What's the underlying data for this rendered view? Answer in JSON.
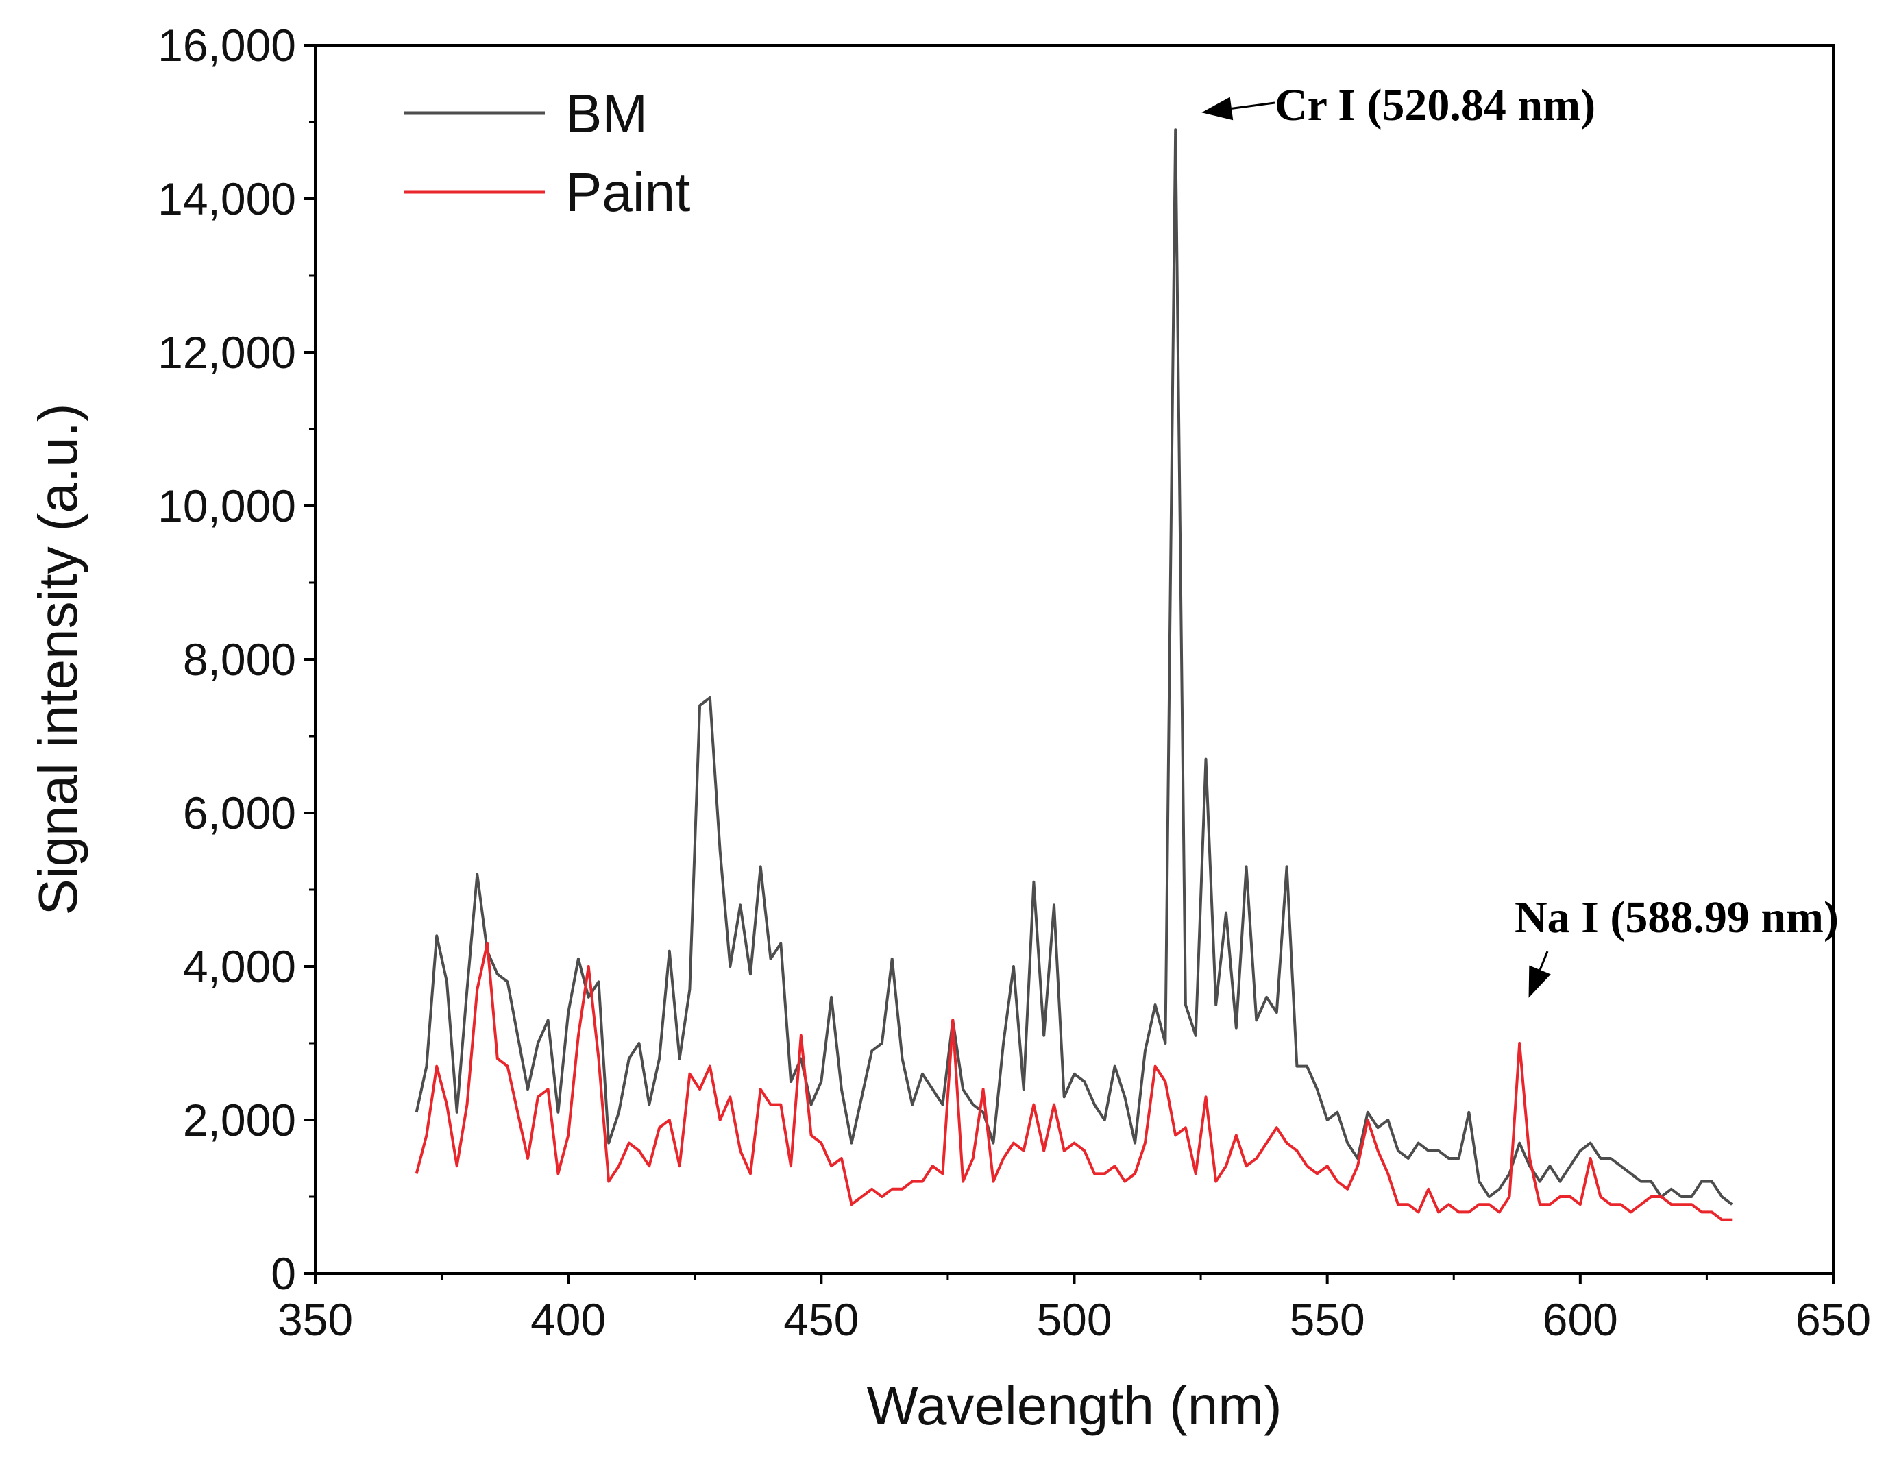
{
  "chart_data": {
    "type": "line",
    "title": "",
    "xlabel": "Wavelength (nm)",
    "ylabel": "Signal intensity (a.u.)",
    "xlim": [
      350,
      650
    ],
    "ylim": [
      0,
      16000
    ],
    "xticks": [
      350,
      400,
      450,
      500,
      550,
      600,
      650
    ],
    "xtick_labels": [
      "350",
      "400",
      "450",
      "500",
      "550",
      "600",
      "650"
    ],
    "yticks": [
      0,
      2000,
      4000,
      6000,
      8000,
      10000,
      12000,
      14000,
      16000
    ],
    "ytick_labels": [
      "0",
      "2,000",
      "4,000",
      "6,000",
      "8,000",
      "10,000",
      "12,000",
      "14,000",
      "16,000"
    ],
    "grid": false,
    "legend_position": "top-left",
    "series": [
      {
        "name": "BM",
        "color": "#4d4d4d",
        "x": [
          370,
          372,
          374,
          376,
          378,
          380,
          382,
          384,
          386,
          388,
          390,
          392,
          394,
          396,
          398,
          400,
          402,
          404,
          406,
          408,
          410,
          412,
          414,
          416,
          418,
          420,
          422,
          424,
          426,
          428,
          430,
          432,
          434,
          436,
          438,
          440,
          442,
          444,
          446,
          448,
          450,
          452,
          454,
          456,
          458,
          460,
          462,
          464,
          466,
          468,
          470,
          472,
          474,
          476,
          478,
          480,
          482,
          484,
          486,
          488,
          490,
          492,
          494,
          496,
          498,
          500,
          502,
          504,
          506,
          508,
          510,
          512,
          514,
          516,
          518,
          520,
          522,
          524,
          526,
          528,
          530,
          532,
          534,
          536,
          538,
          540,
          542,
          544,
          546,
          548,
          550,
          552,
          554,
          556,
          558,
          560,
          562,
          564,
          566,
          568,
          570,
          572,
          574,
          576,
          578,
          580,
          582,
          584,
          586,
          588,
          590,
          592,
          594,
          596,
          598,
          600,
          602,
          604,
          606,
          608,
          610,
          612,
          614,
          616,
          618,
          620,
          622,
          624,
          626,
          628,
          630
        ],
        "values": [
          2100,
          2700,
          4400,
          3800,
          2100,
          3700,
          5200,
          4200,
          3900,
          3800,
          3100,
          2400,
          3000,
          3300,
          2100,
          3400,
          4100,
          3600,
          3800,
          1700,
          2100,
          2800,
          3000,
          2200,
          2800,
          4200,
          2800,
          3700,
          7400,
          7500,
          5500,
          4000,
          4800,
          3900,
          5300,
          4100,
          4300,
          2500,
          2800,
          2200,
          2500,
          3600,
          2400,
          1700,
          2300,
          2900,
          3000,
          4100,
          2800,
          2200,
          2600,
          2400,
          2200,
          3300,
          2400,
          2200,
          2100,
          1700,
          3000,
          4000,
          2400,
          5100,
          3100,
          4800,
          2300,
          2600,
          2500,
          2200,
          2000,
          2700,
          2300,
          1700,
          2900,
          3500,
          3000,
          14900,
          3500,
          3100,
          6700,
          3500,
          4700,
          3200,
          5300,
          3300,
          3600,
          3400,
          5300,
          2700,
          2700,
          2400,
          2000,
          2100,
          1700,
          1500,
          2100,
          1900,
          2000,
          1600,
          1500,
          1700,
          1600,
          1600,
          1500,
          1500,
          2100,
          1200,
          1000,
          1100,
          1300,
          1700,
          1400,
          1200,
          1400,
          1200,
          1400,
          1600,
          1700,
          1500,
          1500,
          1400,
          1300,
          1200,
          1200,
          1000,
          1100,
          1000,
          1000,
          1200,
          1200,
          1000,
          900
        ]
      },
      {
        "name": "Paint",
        "color": "#e8262b",
        "x": [
          370,
          372,
          374,
          376,
          378,
          380,
          382,
          384,
          386,
          388,
          390,
          392,
          394,
          396,
          398,
          400,
          402,
          404,
          406,
          408,
          410,
          412,
          414,
          416,
          418,
          420,
          422,
          424,
          426,
          428,
          430,
          432,
          434,
          436,
          438,
          440,
          442,
          444,
          446,
          448,
          450,
          452,
          454,
          456,
          458,
          460,
          462,
          464,
          466,
          468,
          470,
          472,
          474,
          476,
          478,
          480,
          482,
          484,
          486,
          488,
          490,
          492,
          494,
          496,
          498,
          500,
          502,
          504,
          506,
          508,
          510,
          512,
          514,
          516,
          518,
          520,
          522,
          524,
          526,
          528,
          530,
          532,
          534,
          536,
          538,
          540,
          542,
          544,
          546,
          548,
          550,
          552,
          554,
          556,
          558,
          560,
          562,
          564,
          566,
          568,
          570,
          572,
          574,
          576,
          578,
          580,
          582,
          584,
          586,
          588,
          590,
          592,
          594,
          596,
          598,
          600,
          602,
          604,
          606,
          608,
          610,
          612,
          614,
          616,
          618,
          620,
          622,
          624,
          626,
          628,
          630
        ],
        "values": [
          1300,
          1800,
          2700,
          2200,
          1400,
          2200,
          3700,
          4300,
          2800,
          2700,
          2100,
          1500,
          2300,
          2400,
          1300,
          1800,
          3100,
          4000,
          2800,
          1200,
          1400,
          1700,
          1600,
          1400,
          1900,
          2000,
          1400,
          2600,
          2400,
          2700,
          2000,
          2300,
          1600,
          1300,
          2400,
          2200,
          2200,
          1400,
          3100,
          1800,
          1700,
          1400,
          1500,
          900,
          1000,
          1100,
          1000,
          1100,
          1100,
          1200,
          1200,
          1400,
          1300,
          3300,
          1200,
          1500,
          2400,
          1200,
          1500,
          1700,
          1600,
          2200,
          1600,
          2200,
          1600,
          1700,
          1600,
          1300,
          1300,
          1400,
          1200,
          1300,
          1700,
          2700,
          2500,
          1800,
          1900,
          1300,
          2300,
          1200,
          1400,
          1800,
          1400,
          1500,
          1700,
          1900,
          1700,
          1600,
          1400,
          1300,
          1400,
          1200,
          1100,
          1400,
          2000,
          1600,
          1300,
          900,
          900,
          800,
          1100,
          800,
          900,
          800,
          800,
          900,
          900,
          800,
          1000,
          3000,
          1500,
          900,
          900,
          1000,
          1000,
          900,
          1500,
          1000,
          900,
          900,
          800,
          900,
          1000,
          1000,
          900,
          900,
          900,
          800,
          800,
          700,
          700
        ]
      }
    ],
    "annotations": [
      {
        "text": "Cr I (520.84 nm)",
        "target_x": 520.84,
        "target_y": 14900
      },
      {
        "text": "Na I (588.99 nm)",
        "target_x": 588.99,
        "target_y": 3100
      }
    ]
  }
}
